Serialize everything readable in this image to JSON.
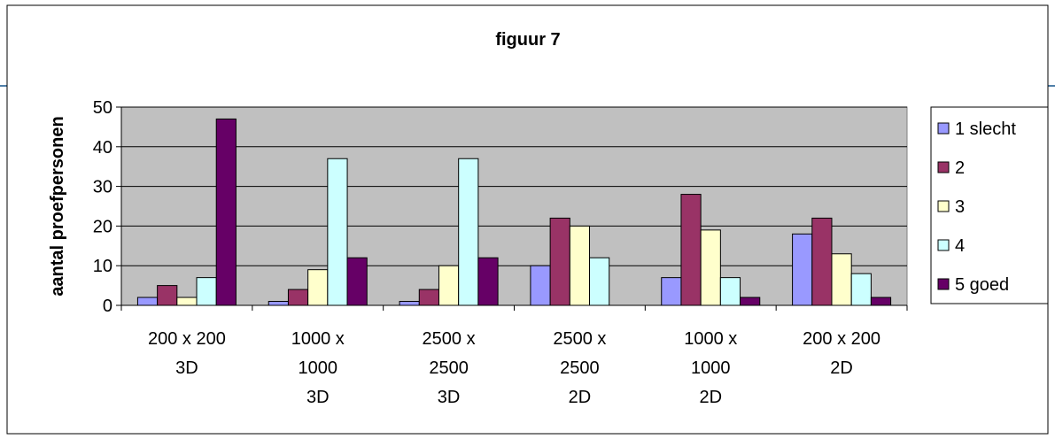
{
  "chart_data": {
    "type": "bar",
    "title": "figuur 7",
    "xlabel": "",
    "ylabel": "aantal proefpersonen",
    "ylim": [
      0,
      50
    ],
    "yticks": [
      0,
      10,
      20,
      30,
      40,
      50
    ],
    "grid": true,
    "legend_position": "right",
    "categories": [
      [
        "200 x 200",
        "3D"
      ],
      [
        "1000 x",
        "1000",
        "3D"
      ],
      [
        "2500 x",
        "2500",
        "3D"
      ],
      [
        "2500 x",
        "2500",
        "2D"
      ],
      [
        "1000 x",
        "1000",
        "2D"
      ],
      [
        "200 x 200",
        "2D"
      ]
    ],
    "series": [
      {
        "name": "1 slecht",
        "color": "#9999ff",
        "values": [
          2,
          1,
          1,
          10,
          7,
          18
        ]
      },
      {
        "name": "2",
        "color": "#993366",
        "values": [
          5,
          4,
          4,
          22,
          28,
          22
        ]
      },
      {
        "name": "3",
        "color": "#ffffcc",
        "values": [
          2,
          9,
          10,
          20,
          19,
          13
        ]
      },
      {
        "name": "4",
        "color": "#ccffff",
        "values": [
          7,
          37,
          37,
          12,
          7,
          8
        ]
      },
      {
        "name": "5 goed",
        "color": "#660066",
        "values": [
          47,
          12,
          12,
          0,
          2,
          2
        ]
      }
    ],
    "plot_background": "#c0c0c0"
  }
}
